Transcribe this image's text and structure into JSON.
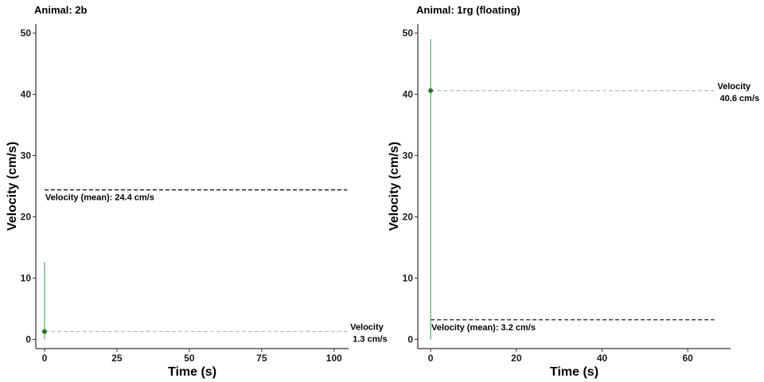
{
  "chart_data": [
    {
      "type": "line",
      "title": "Animal: 2b",
      "xlabel": "Time (s)",
      "ylabel": "Velocity (cm/s)",
      "xlim": [
        -3,
        105
      ],
      "ylim": [
        -1.5,
        51.5
      ],
      "x_ticks": [
        0,
        25,
        50,
        75,
        100
      ],
      "y_ticks": [
        0,
        10,
        20,
        30,
        40,
        50
      ],
      "grid": false,
      "series": [
        {
          "x": [
            0,
            0
          ],
          "y": [
            0,
            12.6
          ],
          "color": "#33a02c"
        }
      ],
      "points": [
        {
          "x": 0,
          "y": 1.3,
          "color": "#1a7f1a"
        }
      ],
      "reference_lines": [
        {
          "y": 24.4,
          "x_range": [
            0,
            104.5
          ],
          "style": "dashed",
          "color": "#000000",
          "label": "Velocity (mean): 24.4  cm/s",
          "label_pos": "below-start"
        },
        {
          "y": 1.3,
          "x_range": [
            0,
            104.5
          ],
          "style": "dashed",
          "color": "#bbbbbb",
          "label": "Velocity\n 1.3  cm/s",
          "label_pos": "end"
        }
      ]
    },
    {
      "type": "line",
      "title": "Animal: 1rg (floating)",
      "xlabel": "Time (s)",
      "ylabel": "Velocity (cm/s)",
      "xlim": [
        -3,
        70
      ],
      "ylim": [
        -1.5,
        51.5
      ],
      "x_ticks": [
        0,
        20,
        40,
        60
      ],
      "y_ticks": [
        0,
        10,
        20,
        30,
        40,
        50
      ],
      "grid": false,
      "series": [
        {
          "x": [
            0,
            0
          ],
          "y": [
            0,
            49
          ],
          "color": "#33a02c"
        }
      ],
      "points": [
        {
          "x": 0,
          "y": 40.6,
          "color": "#1a7f1a"
        }
      ],
      "reference_lines": [
        {
          "y": 40.6,
          "x_range": [
            0,
            66.2
          ],
          "style": "dashed",
          "color": "#bbbbbb",
          "label": "Velocity\n 40.6  cm/s",
          "label_pos": "end"
        },
        {
          "y": 3.2,
          "x_range": [
            0,
            66.2
          ],
          "style": "dashed",
          "color": "#000000",
          "label": "Velocity (mean): 3.2  cm/s",
          "label_pos": "below-start"
        }
      ]
    }
  ]
}
